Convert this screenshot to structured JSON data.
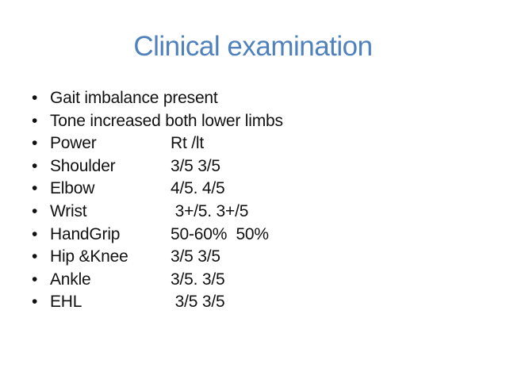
{
  "slide": {
    "title": "Clinical examination",
    "bullet_char": "•",
    "colors": {
      "title": "#4f81bd",
      "text": "#111111",
      "background": "#ffffff"
    },
    "bullets": [
      {
        "label": "Gait imbalance present",
        "value": ""
      },
      {
        "label": "Tone increased both lower limbs",
        "value": ""
      },
      {
        "label": "Power",
        "value": "Rt /lt"
      },
      {
        "label": "Shoulder",
        "value": "3/5 3/5"
      },
      {
        "label": "Elbow",
        "value": "4/5. 4/5"
      },
      {
        "label": "Wrist",
        "value": " 3+/5. 3+/5"
      },
      {
        "label": "HandGrip",
        "value": "50-60%  50%"
      },
      {
        "label": "Hip &Knee",
        "value": "3/5 3/5"
      },
      {
        "label": "Ankle",
        "value": "3/5. 3/5"
      },
      {
        "label": "EHL",
        "value": " 3/5 3/5"
      }
    ]
  }
}
